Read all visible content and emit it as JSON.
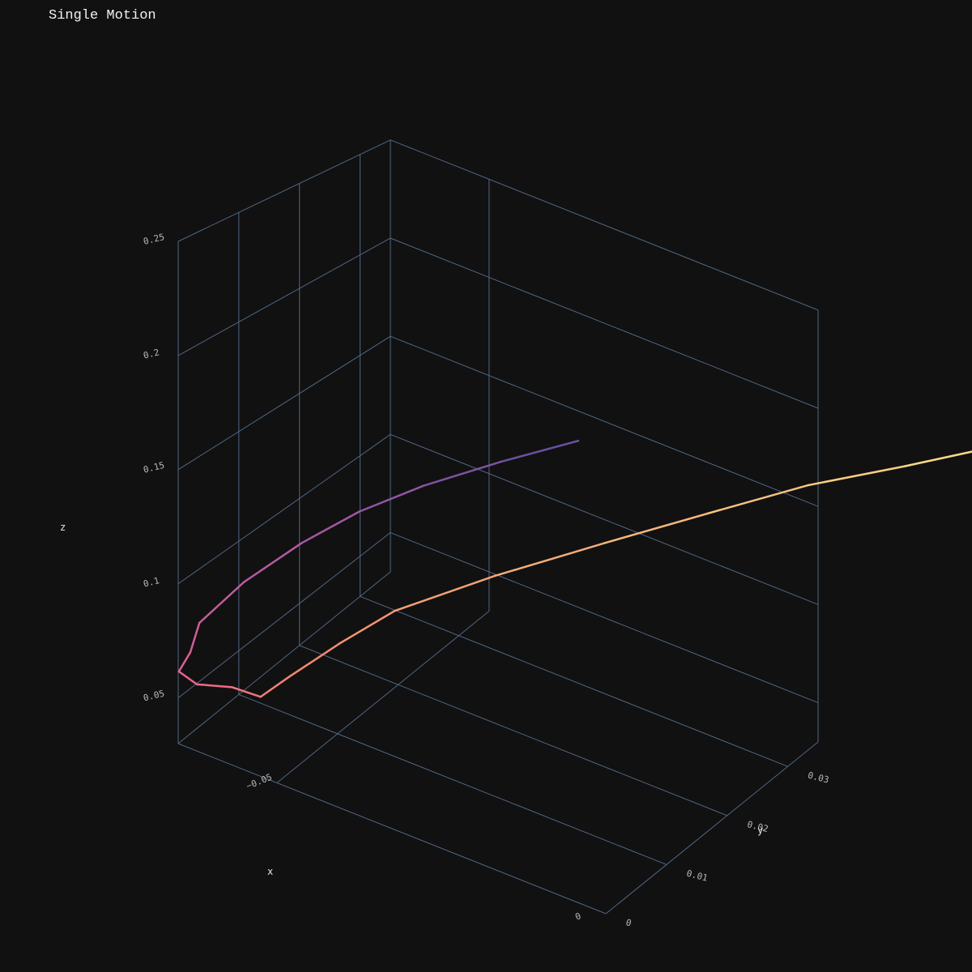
{
  "chart_data": {
    "type": "line",
    "title": "Single Motion",
    "xlabel": "x",
    "ylabel": "y",
    "zlabel": "z",
    "x_ticks": [
      "−0.05",
      "0"
    ],
    "y_ticks": [
      "0",
      "0.01",
      "0.02",
      "0.03"
    ],
    "z_ticks": [
      "0.05",
      "0.1",
      "0.15",
      "0.2",
      "0.25"
    ],
    "xlim": [
      -0.065,
      0.035
    ],
    "ylim": [
      0,
      0.035
    ],
    "zlim": [
      0.03,
      0.25
    ],
    "grid": true,
    "colorscale": [
      "#6a51a3",
      "#b55aa3",
      "#e8608c",
      "#f28a72",
      "#f6b77c",
      "#fbe38b"
    ],
    "series": [
      {
        "points": [
          {
            "x": -0.024,
            "y": 0.0215,
            "z": 0.176
          },
          {
            "x": -0.033,
            "y": 0.0185,
            "z": 0.16
          },
          {
            "x": -0.042,
            "y": 0.0155,
            "z": 0.143
          },
          {
            "x": -0.049,
            "y": 0.0125,
            "z": 0.128
          },
          {
            "x": -0.055,
            "y": 0.0095,
            "z": 0.112
          },
          {
            "x": -0.061,
            "y": 0.0065,
            "z": 0.093
          },
          {
            "x": -0.065,
            "y": 0.0035,
            "z": 0.076
          },
          {
            "x": -0.065,
            "y": 0.002,
            "z": 0.066
          },
          {
            "x": -0.066,
            "y": 0.0012,
            "z": 0.058
          },
          {
            "x": -0.064,
            "y": 0.002,
            "z": 0.053
          },
          {
            "x": -0.061,
            "y": 0.0045,
            "z": 0.05
          },
          {
            "x": -0.058,
            "y": 0.006,
            "z": 0.046
          },
          {
            "x": -0.056,
            "y": 0.0085,
            "z": 0.052
          },
          {
            "x": -0.051,
            "y": 0.0115,
            "z": 0.067
          },
          {
            "x": -0.045,
            "y": 0.014,
            "z": 0.084
          },
          {
            "x": -0.033,
            "y": 0.0175,
            "z": 0.108
          },
          {
            "x": -0.02,
            "y": 0.0215,
            "z": 0.132
          },
          {
            "x": -0.008,
            "y": 0.0255,
            "z": 0.154
          },
          {
            "x": 0.004,
            "y": 0.029,
            "z": 0.177
          },
          {
            "x": 0.016,
            "y": 0.032,
            "z": 0.197
          },
          {
            "x": 0.027,
            "y": 0.0345,
            "z": 0.217
          },
          {
            "x": 0.035,
            "y": 0.0365,
            "z": 0.238
          }
        ]
      }
    ]
  }
}
